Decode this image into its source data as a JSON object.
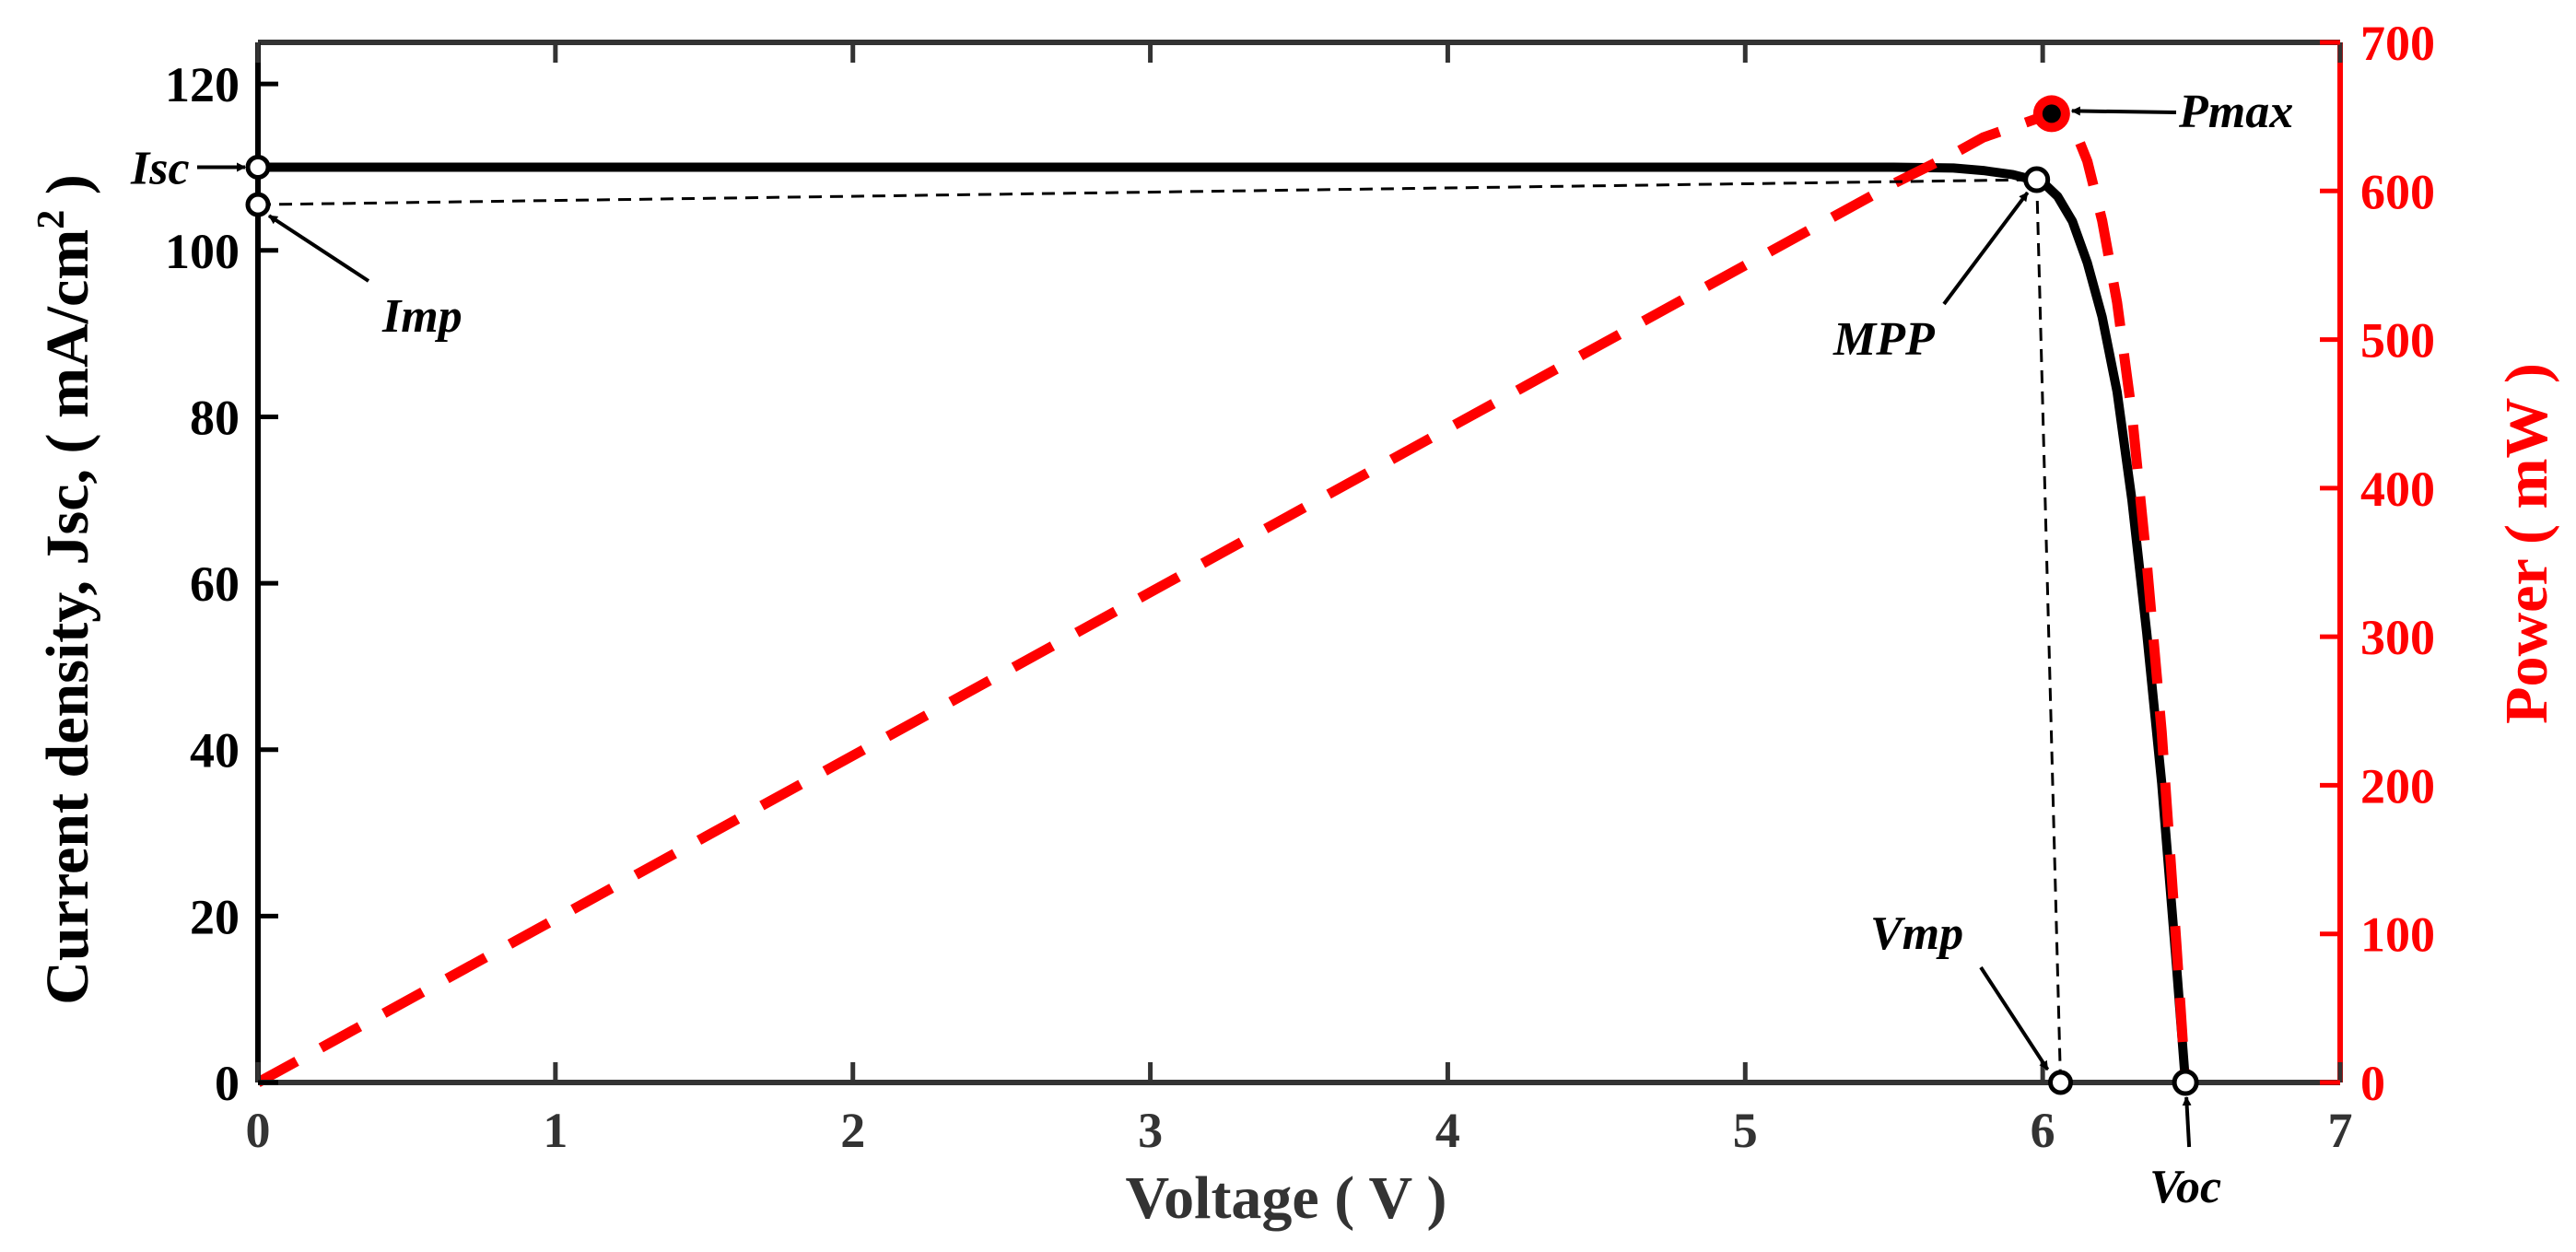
{
  "chart_data": {
    "type": "line",
    "title": "",
    "xlabel": "Voltage ( V )",
    "ylabel_left": "Current density, Jsc, ( mA/cm",
    "ylabel_left_sup": "2",
    "ylabel_left_end": " )",
    "ylabel_right": "Power ( mW )",
    "xlim": [
      0,
      7
    ],
    "ylim_left": [
      0,
      125
    ],
    "ylim_right": [
      0,
      700
    ],
    "xticks": [
      0,
      1,
      2,
      3,
      4,
      5,
      6,
      7
    ],
    "yticks_left": [
      0,
      20,
      40,
      60,
      80,
      100,
      120
    ],
    "yticks_right": [
      0,
      100,
      200,
      300,
      400,
      500,
      600,
      700
    ],
    "colors": {
      "current": "#000000",
      "power": "#ff0000"
    },
    "series": [
      {
        "name": "Current density",
        "axis": "left",
        "style": "solid",
        "x": [
          0,
          1,
          2,
          3,
          4,
          5,
          5.5,
          5.7,
          5.8,
          5.9,
          6.0,
          6.05,
          6.1,
          6.15,
          6.2,
          6.25,
          6.3,
          6.35,
          6.4,
          6.45,
          6.48
        ],
        "y": [
          110,
          110,
          110,
          110,
          110,
          110,
          110,
          109.9,
          109.6,
          109.1,
          108.2,
          106.5,
          103.5,
          98.5,
          92,
          83,
          70,
          54,
          36,
          14,
          0
        ]
      },
      {
        "name": "Power",
        "axis": "right",
        "style": "dashed",
        "x": [
          0,
          1,
          2,
          3,
          4,
          5,
          5.5,
          5.7,
          5.8,
          5.9,
          6.0,
          6.05,
          6.1,
          6.15,
          6.2,
          6.25,
          6.3,
          6.35,
          6.4,
          6.45,
          6.48
        ],
        "y": [
          0,
          110,
          220,
          330,
          440,
          550,
          605,
          625,
          636,
          643,
          650,
          652,
          645,
          620,
          580,
          525,
          450,
          350,
          236,
          92,
          0
        ]
      }
    ],
    "annotations": {
      "isc": {
        "label": "Isc",
        "x": 0,
        "y": 110
      },
      "imp": {
        "label": "Imp",
        "x": 0,
        "y": 105.5
      },
      "mpp": {
        "label": "MPP",
        "x": 5.98,
        "y": 108.5
      },
      "pmax": {
        "label": "Pmax",
        "x": 6.03,
        "y": 652
      },
      "vmp": {
        "label": "Vmp",
        "x": 6.06,
        "y": 0
      },
      "voc": {
        "label": "Voc",
        "x": 6.48,
        "y": 0
      }
    }
  }
}
